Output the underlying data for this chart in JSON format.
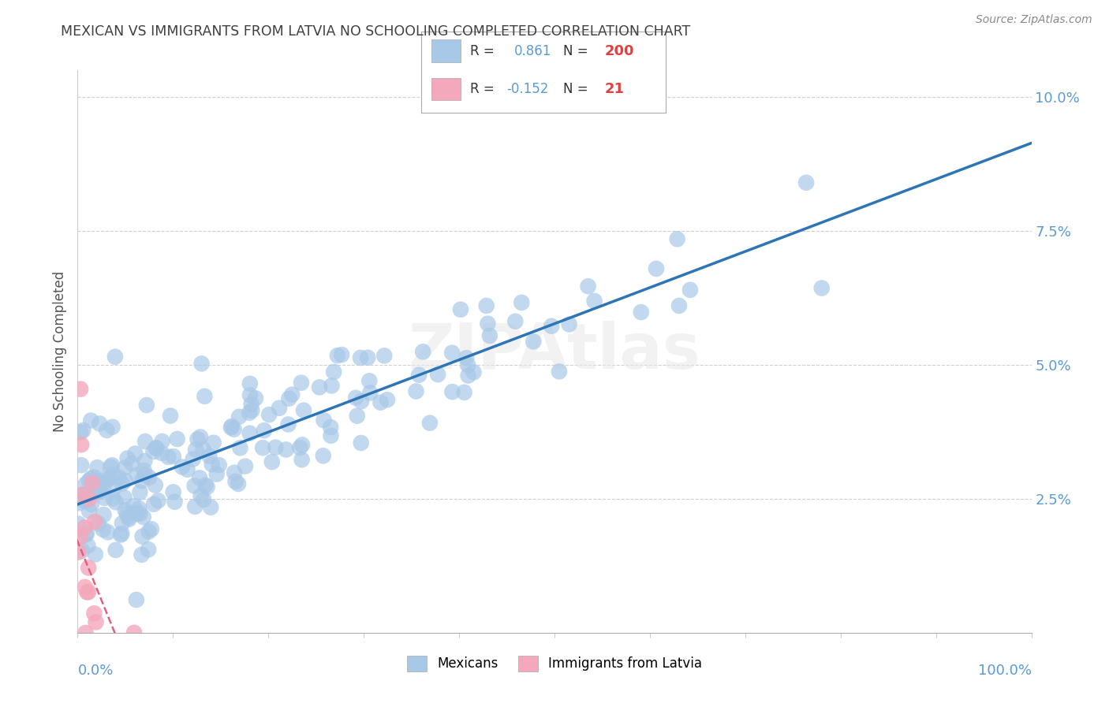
{
  "title": "MEXICAN VS IMMIGRANTS FROM LATVIA NO SCHOOLING COMPLETED CORRELATION CHART",
  "source": "Source: ZipAtlas.com",
  "ylabel": "No Schooling Completed",
  "yticks": [
    "2.5%",
    "5.0%",
    "7.5%",
    "10.0%"
  ],
  "ytick_vals": [
    0.025,
    0.05,
    0.075,
    0.1
  ],
  "blue_scatter_color": "#a8c8e8",
  "pink_scatter_color": "#f4a8bc",
  "blue_line_color": "#2e75b6",
  "pink_line_color": "#e06080",
  "watermark": "ZIPAtlas",
  "title_color": "#404040",
  "axis_label_color": "#5b9bd5",
  "legend_R_color": "#5b9bd5",
  "legend_N_color": "#e04040",
  "xmin": 0.0,
  "xmax": 1.0,
  "ymin": 0.0,
  "ymax": 0.105,
  "seed_blue": 42,
  "seed_pink": 123,
  "N_blue": 200,
  "N_pink": 21,
  "R_blue": 0.861,
  "R_pink": -0.152
}
